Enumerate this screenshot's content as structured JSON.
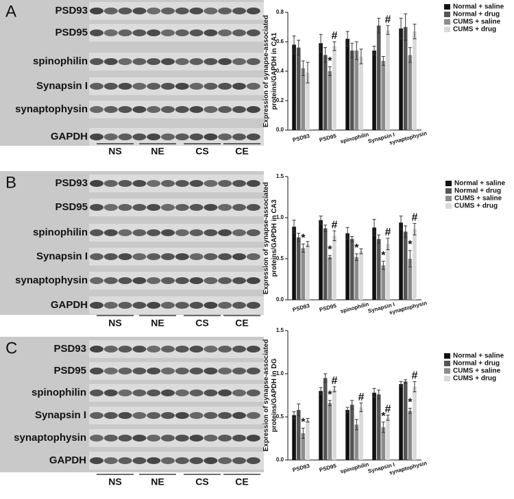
{
  "panels": [
    {
      "letter": "A",
      "proteins": [
        "PSD93",
        "PSD95",
        "spinophilin",
        "Synapsin I",
        "synaptophysin",
        "GAPDH"
      ],
      "groups": [
        "NS",
        "NE",
        "CS",
        "CE"
      ]
    },
    {
      "letter": "B",
      "proteins": [
        "PSD93",
        "PSD95",
        "spinophilin",
        "Synapsin I",
        "synaptophysin",
        "GAPDH"
      ],
      "groups": [
        "NS",
        "NE",
        "CS",
        "CE"
      ]
    },
    {
      "letter": "C",
      "proteins": [
        "PSD93",
        "PSD95",
        "spinophilin",
        "Synapsin I",
        "synaptophysin",
        "GAPDH"
      ],
      "groups": [
        "NS",
        "NE",
        "CS",
        "CE"
      ]
    }
  ],
  "chart_data": [
    {
      "type": "bar",
      "ylabel": [
        "Expression of synapse-associated",
        "proteins/GAPDH in CA1"
      ],
      "categories": [
        "PSD93",
        "PSD95",
        "spinophilin",
        "Synapsin I",
        "synaptophysin"
      ],
      "ylim": [
        0,
        0.8
      ],
      "yticks": [
        {
          "value": 0,
          "label": "0.0"
        },
        0.2,
        0.4,
        0.6,
        0.8
      ],
      "series": [
        {
          "name": "Normal + saline",
          "color": "#111111",
          "values": [
            0.58,
            0.59,
            0.62,
            0.54,
            0.69
          ],
          "errors": [
            0.06,
            0.06,
            0.05,
            0.03,
            0.07
          ],
          "annotations": [
            null,
            null,
            null,
            null,
            null
          ]
        },
        {
          "name": "Normal + drug",
          "color": "#555555",
          "values": [
            0.56,
            0.51,
            0.54,
            0.71,
            0.7
          ],
          "errors": [
            0.05,
            0.05,
            0.05,
            0.05,
            0.09
          ],
          "annotations": [
            null,
            null,
            null,
            null,
            null
          ]
        },
        {
          "name": "CUMS + saline",
          "color": "#8c8c8c",
          "values": [
            0.42,
            0.4,
            0.54,
            0.47,
            0.51
          ],
          "errors": [
            0.05,
            0.03,
            0.06,
            0.03,
            0.05
          ],
          "annotations": [
            null,
            "*",
            null,
            null,
            null
          ]
        },
        {
          "name": "CUMS + drug",
          "color": "#d9d9d9",
          "values": [
            0.39,
            0.57,
            0.5,
            0.68,
            0.67
          ],
          "errors": [
            0.07,
            0.03,
            0.05,
            0.03,
            0.05
          ],
          "annotations": [
            null,
            "#",
            null,
            "#",
            null
          ]
        }
      ]
    },
    {
      "type": "bar",
      "ylabel": [
        "Expression of synapse-associated",
        "proteins/GAPDH in CA3"
      ],
      "categories": [
        "PSD93",
        "PSD95",
        "spinophilin",
        "Synapsin I",
        "synaptophysin"
      ],
      "ylim": [
        0,
        1.5
      ],
      "yticks": [
        {
          "value": 0,
          "label": "0.0"
        },
        0.5,
        {
          "value": 1,
          "label": "1.0"
        },
        1.5
      ],
      "series": [
        {
          "name": "Normal + saline",
          "color": "#111111",
          "values": [
            0.89,
            0.97,
            0.81,
            0.88,
            0.94
          ],
          "errors": [
            0.08,
            0.05,
            0.07,
            0.1,
            0.08
          ],
          "annotations": [
            null,
            null,
            null,
            null,
            null
          ]
        },
        {
          "name": "Normal + drug",
          "color": "#555555",
          "values": [
            0.76,
            0.87,
            0.74,
            0.74,
            0.83
          ],
          "errors": [
            0.05,
            0.04,
            0.03,
            0.05,
            0.07
          ],
          "annotations": [
            null,
            null,
            null,
            null,
            null
          ]
        },
        {
          "name": "CUMS + saline",
          "color": "#8c8c8c",
          "values": [
            0.63,
            0.52,
            0.52,
            0.42,
            0.5
          ],
          "errors": [
            0.05,
            0.02,
            0.04,
            0.05,
            0.1
          ],
          "annotations": [
            "*",
            "*",
            "*",
            "*",
            "*"
          ]
        },
        {
          "name": "CUMS + drug",
          "color": "#d9d9d9",
          "values": [
            0.68,
            0.78,
            0.59,
            0.68,
            0.86
          ],
          "errors": [
            0.03,
            0.06,
            0.03,
            0.07,
            0.07
          ],
          "annotations": [
            null,
            "#",
            null,
            "#",
            "#"
          ]
        }
      ]
    },
    {
      "type": "bar",
      "ylabel": [
        "Expression of synapse-associated",
        "proteins/GAPDH in DG"
      ],
      "categories": [
        "PSD93",
        "PSD95",
        "spinophilin",
        "Synapsin I",
        "synaptophysin"
      ],
      "ylim": [
        0,
        1.5
      ],
      "yticks": [
        {
          "value": 0,
          "label": "0.0"
        },
        0.5,
        {
          "value": 1,
          "label": "1.0"
        },
        1.5
      ],
      "series": [
        {
          "name": "Normal + saline",
          "color": "#111111",
          "values": [
            0.52,
            0.8,
            0.58,
            0.78,
            0.88
          ],
          "errors": [
            0.04,
            0.04,
            0.03,
            0.05,
            0.03
          ],
          "annotations": [
            null,
            null,
            null,
            null,
            null
          ]
        },
        {
          "name": "Normal + drug",
          "color": "#555555",
          "values": [
            0.58,
            0.95,
            0.64,
            0.76,
            0.91
          ],
          "errors": [
            0.07,
            0.05,
            0.05,
            0.05,
            0.02
          ],
          "annotations": [
            null,
            null,
            null,
            null,
            null
          ]
        },
        {
          "name": "CUMS + saline",
          "color": "#8c8c8c",
          "values": [
            0.31,
            0.66,
            0.41,
            0.38,
            0.57
          ],
          "errors": [
            0.06,
            0.03,
            0.06,
            0.06,
            0.03
          ],
          "annotations": [
            "*",
            "*",
            null,
            "*",
            "*"
          ]
        },
        {
          "name": "CUMS + drug",
          "color": "#d9d9d9",
          "values": [
            0.46,
            0.82,
            0.61,
            0.49,
            0.85
          ],
          "errors": [
            0.02,
            0.03,
            0.05,
            0.03,
            0.06
          ],
          "annotations": [
            null,
            "#",
            "#",
            "#",
            "#"
          ]
        }
      ]
    }
  ]
}
